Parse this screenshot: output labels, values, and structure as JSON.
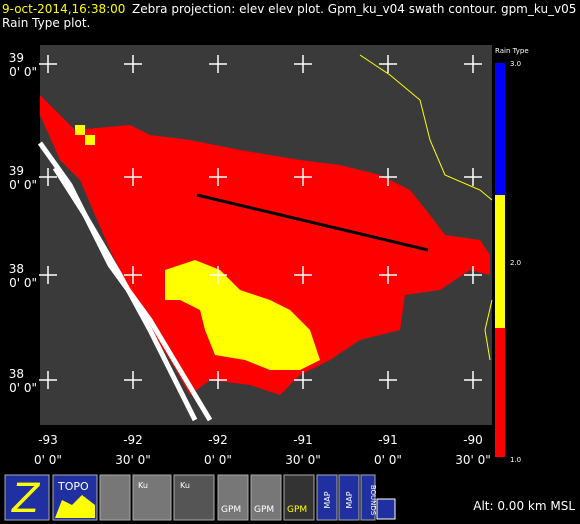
{
  "header": {
    "time": "9-oct-2014,16:38:00",
    "rest": "Zebra projection: elev elev  plot.  Gpm_ku_v04 swath contour.  gpm_ku_v05",
    "line2": "Rain Type  plot."
  },
  "lat_labels": [
    {
      "deg": "39",
      "min": "0' 0\""
    },
    {
      "deg": "39",
      "min": "0' 0\""
    },
    {
      "deg": "38",
      "min": "0' 0\""
    },
    {
      "deg": "38",
      "min": "0' 0\""
    }
  ],
  "lon_labels": [
    {
      "deg": "-93",
      "min": "0' 0\""
    },
    {
      "deg": "-92",
      "min": "30' 0\""
    },
    {
      "deg": "-92",
      "min": "0' 0\""
    },
    {
      "deg": "-91",
      "min": "30' 0\""
    },
    {
      "deg": "-91",
      "min": "0' 0\""
    },
    {
      "deg": "-90",
      "min": "30' 0\""
    }
  ],
  "colorbar": {
    "title": "Rain Type",
    "labels": [
      "3.0",
      "2.0",
      "1.0"
    ]
  },
  "toolbar": {
    "topo": "TOPO",
    "map": "MAP",
    "bounds": "BOUNDS",
    "gpm": "GPM",
    "ku": "Ku"
  },
  "status": {
    "altitude": "Alt: 0.00 km MSL"
  }
}
